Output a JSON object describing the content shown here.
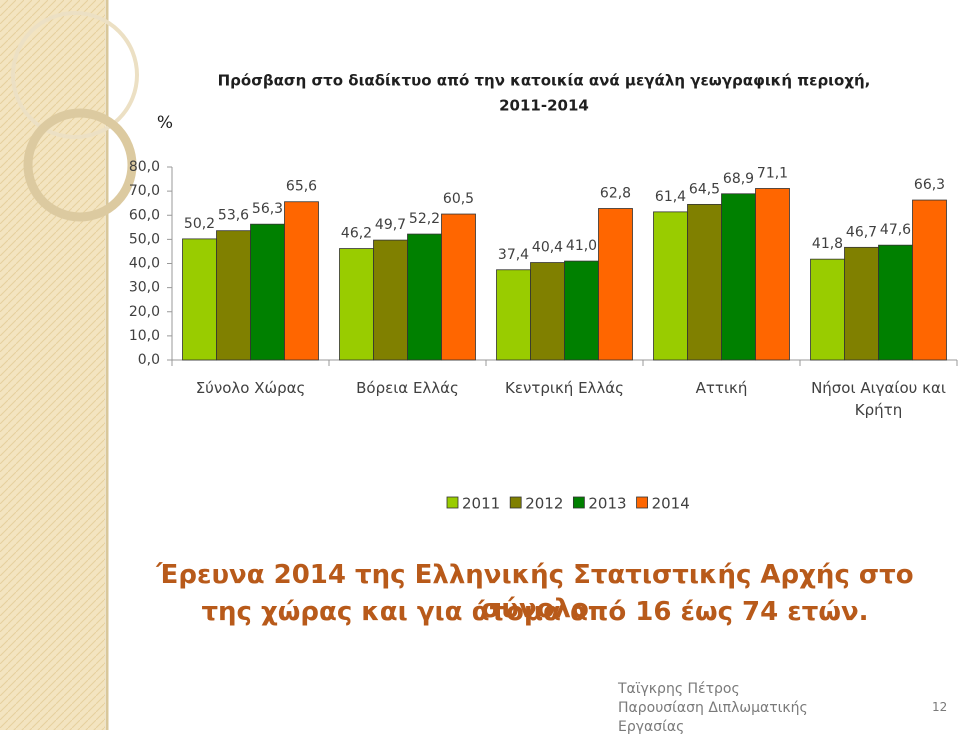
{
  "chart_data": {
    "type": "bar",
    "title": [
      "Πρόσβαση στο διαδίκτυο από την κατοικία ανά μεγάλη γεωγραφική περιοχή,",
      "2011-2014"
    ],
    "y_label": "%",
    "categories": [
      "Σύνολο Χώρας",
      "Βόρεια Ελλάς",
      "Κεντρική Ελλάς",
      "Αττική",
      "Νήσοι Αιγαίου και Κρήτη"
    ],
    "series": [
      {
        "name": "2011",
        "color": "#99cc00",
        "values": [
          50.2,
          46.2,
          37.4,
          61.4,
          41.8
        ],
        "value_labels": [
          "50,2",
          "46,2",
          "37,4",
          "61,4",
          "41,8"
        ]
      },
      {
        "name": "2012",
        "color": "#808000",
        "values": [
          53.6,
          49.7,
          40.4,
          64.5,
          46.7
        ],
        "value_labels": [
          "53,6",
          "49,7",
          "40,4",
          "64,5",
          "46,7"
        ]
      },
      {
        "name": "2013",
        "color": "#008000",
        "values": [
          56.3,
          52.2,
          41.0,
          68.9,
          47.6
        ],
        "value_labels": [
          "56,3",
          "52,2",
          "41,0",
          "68,9",
          "47,6"
        ]
      },
      {
        "name": "2014",
        "color": "#ff6600",
        "values": [
          65.6,
          60.5,
          62.8,
          71.1,
          66.3
        ],
        "value_labels": [
          "65,6",
          "60,5",
          "62,8",
          "71,1",
          "66,3"
        ]
      }
    ],
    "ylim": [
      0,
      80
    ],
    "yticks": [
      {
        "value": 0,
        "label": "0,0"
      },
      {
        "value": 10,
        "label": "10,0"
      },
      {
        "value": 20,
        "label": "20,0"
      },
      {
        "value": 30,
        "label": "30,0"
      },
      {
        "value": 40,
        "label": "40,0"
      },
      {
        "value": 50,
        "label": "50,0"
      },
      {
        "value": 60,
        "label": "60,0"
      },
      {
        "value": 70,
        "label": "70,0"
      },
      {
        "value": 80,
        "label": "80,0"
      }
    ],
    "legend": "bottom"
  },
  "caption": [
    "Έρευνα 2014 της Ελληνικής Στατιστικής Αρχής στο σύνολο",
    "της χώρας και για άτομα από 16 έως 74 ετών."
  ],
  "footer": {
    "text": "Ταϊγκρης Πέτρος Παρουσίαση Διπλωματικής Εργασίας",
    "page": "12"
  }
}
